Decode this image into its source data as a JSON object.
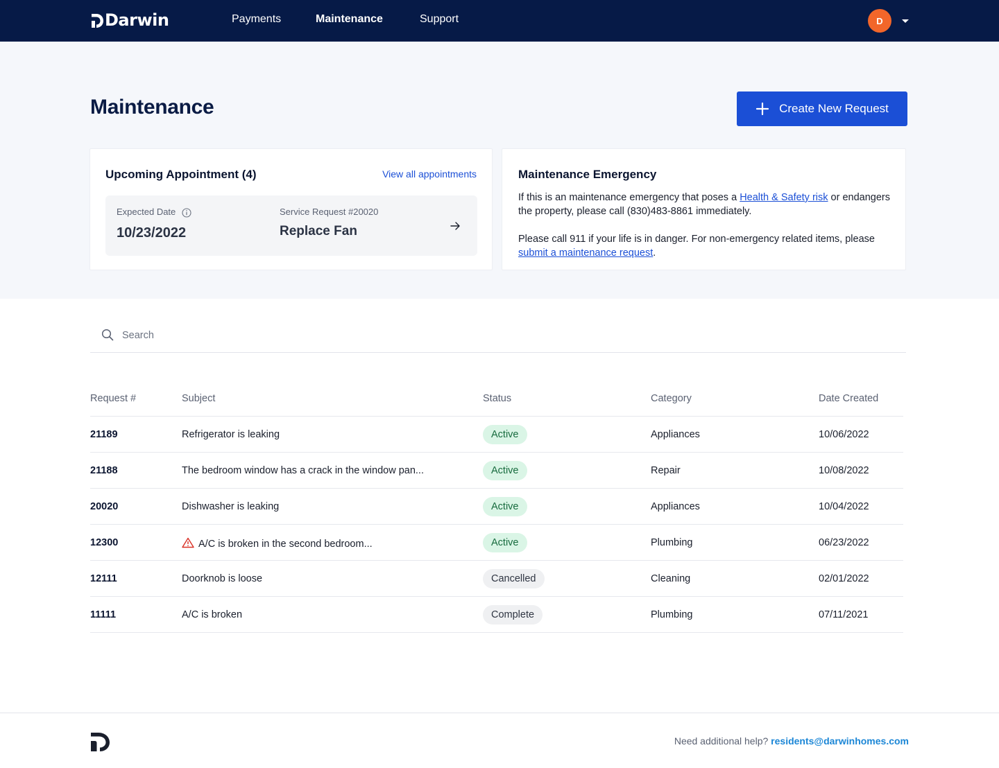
{
  "nav": {
    "brand": "Darwin",
    "links": [
      "Payments",
      "Maintenance",
      "Support"
    ],
    "active_link": "Maintenance",
    "avatar_initial": "D"
  },
  "page": {
    "title": "Maintenance",
    "create_button": "Create New Request"
  },
  "appointment": {
    "title": "Upcoming Appointment (4)",
    "view_all": "View all appointments",
    "expected_label": "Expected Date",
    "expected_date": "10/23/2022",
    "service_label": "Service Request #20020",
    "service_name": "Replace Fan"
  },
  "emergency": {
    "title": "Maintenance Emergency",
    "p1_a": "If this is an maintenance emergency that poses a ",
    "p1_link": "Health & Safety risk",
    "p1_b": " or endangers the property, please call ",
    "p1_phone": "(830)483-8861",
    "p1_c": " immediately.",
    "p2_a": "Please call ",
    "p2_num": "911",
    "p2_b": " if your life is in danger. For non-emergency related items, please ",
    "p2_link": "submit a maintenance request",
    "p2_c": "."
  },
  "search": {
    "placeholder": "Search"
  },
  "table": {
    "headers": [
      "Request #",
      "Subject",
      "Status",
      "Category",
      "Date Created"
    ],
    "rows": [
      {
        "id": "21189",
        "subject": "Refrigerator is leaking",
        "status": "Active",
        "category": "Appliances",
        "date": "10/06/2022",
        "warning": false
      },
      {
        "id": "21188",
        "subject": "The bedroom window has a crack in the window pan...",
        "status": "Active",
        "category": "Repair",
        "date": "10/08/2022",
        "warning": false
      },
      {
        "id": "20020",
        "subject": "Dishwasher is leaking",
        "status": "Active",
        "category": "Appliances",
        "date": "10/04/2022",
        "warning": false
      },
      {
        "id": "12300",
        "subject": "A/C is broken in the second bedroom...",
        "status": "Active",
        "category": "Plumbing",
        "date": "06/23/2022",
        "warning": true
      },
      {
        "id": "12111",
        "subject": "Doorknob is loose",
        "status": "Cancelled",
        "category": "Cleaning",
        "date": "02/01/2022",
        "warning": false
      },
      {
        "id": "11111",
        "subject": "A/C is broken",
        "status": "Complete",
        "category": "Plumbing",
        "date": "07/11/2021",
        "warning": false
      }
    ]
  },
  "footer": {
    "help_text": "Need additional help?",
    "help_email": "residents@darwinhomes.com"
  },
  "colors": {
    "nav_bg": "#061a47",
    "primary": "#1b4fd6",
    "avatar": "#f2662a",
    "active_badge_bg": "#daf5e6",
    "warning": "#d93025"
  }
}
